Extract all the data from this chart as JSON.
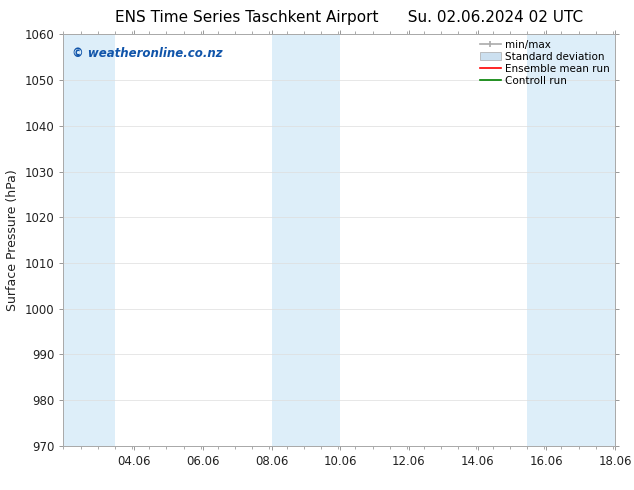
{
  "title": "ENS Time Series Taschkent Airport",
  "title2": "Su. 02.06.2024 02 UTC",
  "ylabel": "Surface Pressure (hPa)",
  "xlabel": "",
  "xlim": [
    2.0,
    18.06
  ],
  "ylim": [
    970,
    1060
  ],
  "yticks": [
    970,
    980,
    990,
    1000,
    1010,
    1020,
    1030,
    1040,
    1050,
    1060
  ],
  "xtick_labels": [
    "04.06",
    "06.06",
    "08.06",
    "10.06",
    "12.06",
    "14.06",
    "16.06",
    "18.06"
  ],
  "xtick_positions": [
    4.06,
    6.06,
    8.06,
    10.06,
    12.06,
    14.06,
    16.06,
    18.06
  ],
  "shaded_bands": [
    {
      "x_start": 2.0,
      "x_end": 3.5
    },
    {
      "x_start": 8.06,
      "x_end": 10.06
    },
    {
      "x_start": 15.5,
      "x_end": 18.06
    }
  ],
  "band_color": "#ddeef9",
  "watermark": "© weatheronline.co.nz",
  "watermark_color": "#1155aa",
  "legend_items": [
    {
      "label": "min/max",
      "color": "#aaaaaa",
      "style": "errorbar"
    },
    {
      "label": "Standard deviation",
      "color": "#cce0f0",
      "style": "rect"
    },
    {
      "label": "Ensemble mean run",
      "color": "red",
      "style": "line"
    },
    {
      "label": "Controll run",
      "color": "green",
      "style": "line"
    }
  ],
  "bg_color": "#ffffff",
  "grid_color": "#dddddd",
  "title_fontsize": 11,
  "tick_fontsize": 8.5,
  "legend_fontsize": 7.5,
  "ylabel_fontsize": 9
}
